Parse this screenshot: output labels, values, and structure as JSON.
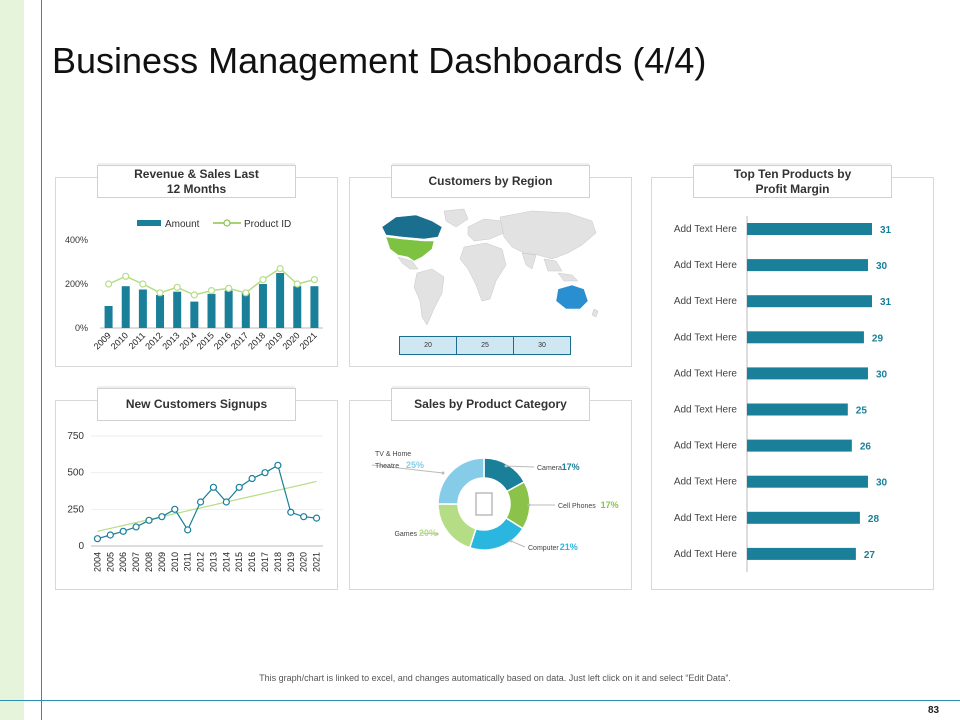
{
  "page": {
    "title": "Business Management Dashboards (4/4)",
    "page_number": "83",
    "footer_note": "This graph/chart is linked to excel, and changes automatically based on data. Just left click on it and select “Edit Data”."
  },
  "colors": {
    "teal": "#1a7f99",
    "green": "#8bc34a",
    "light_green": "#b5dd85",
    "cyan": "#2bb6e0",
    "sky": "#86cce8",
    "dark_blue": "#1a6f8f"
  },
  "panels": {
    "revenue": {
      "title": "Revenue & Sales Last 12 Months"
    },
    "region": {
      "title": "Customers by Region"
    },
    "top_products": {
      "title": "Top Ten Products by Profit Margin"
    },
    "signups": {
      "title": "New Customers Signups"
    },
    "category": {
      "title": "Sales by Product Category"
    }
  },
  "chart_data": [
    {
      "id": "revenue",
      "type": "bar",
      "title": "Revenue & Sales Last 12 Months",
      "categories": [
        "2009",
        "2010",
        "2011",
        "2012",
        "2013",
        "2014",
        "2015",
        "2016",
        "2017",
        "2018",
        "2019",
        "2020",
        "2021"
      ],
      "series": [
        {
          "name": "Amount",
          "type": "bar",
          "values": [
            100,
            190,
            175,
            150,
            165,
            120,
            155,
            170,
            160,
            200,
            250,
            190,
            190
          ]
        },
        {
          "name": "Product ID",
          "type": "line",
          "values": [
            200,
            235,
            200,
            160,
            185,
            150,
            170,
            180,
            160,
            220,
            270,
            200,
            220
          ]
        }
      ],
      "y_ticks": [
        "0%",
        "200%",
        "400%"
      ],
      "ylim": [
        0,
        400
      ]
    },
    {
      "id": "region",
      "type": "map",
      "title": "Customers by Region",
      "legend_values": [
        "20",
        "25",
        "30"
      ]
    },
    {
      "id": "top_products",
      "type": "bar",
      "orientation": "horizontal",
      "title": "Top Ten Products by Profit Margin",
      "categories": [
        "Add Text Here",
        "Add Text Here",
        "Add Text Here",
        "Add Text Here",
        "Add Text Here",
        "Add Text Here",
        "Add Text Here",
        "Add Text Here",
        "Add Text Here",
        "Add Text Here"
      ],
      "values": [
        31,
        30,
        31,
        29,
        30,
        25,
        26,
        30,
        28,
        27
      ],
      "xlim": [
        0,
        31
      ]
    },
    {
      "id": "signups",
      "type": "line",
      "title": "New Customers Signups",
      "x": [
        "2004",
        "2005",
        "2006",
        "2007",
        "2008",
        "2009",
        "2010",
        "2011",
        "2012",
        "2013",
        "2014",
        "2015",
        "2016",
        "2017",
        "2018",
        "2019",
        "2020",
        "2021"
      ],
      "values": [
        50,
        75,
        100,
        130,
        175,
        200,
        250,
        110,
        300,
        400,
        300,
        400,
        460,
        500,
        550,
        230,
        200,
        190
      ],
      "trendline": {
        "start": 100,
        "end": 440
      },
      "y_ticks": [
        "0",
        "250",
        "500",
        "750"
      ],
      "ylim": [
        0,
        750
      ]
    },
    {
      "id": "category",
      "type": "pie",
      "title": "Sales by Product Category",
      "slices": [
        {
          "label": "Camera",
          "value": 17,
          "pct": "17%"
        },
        {
          "label": "Cell Phones",
          "value": 17,
          "pct": "17%"
        },
        {
          "label": "Computer",
          "value": 21,
          "pct": "21%"
        },
        {
          "label": "Games",
          "value": 20,
          "pct": "20%"
        },
        {
          "label": "TV & Home Theatre",
          "label_lines": [
            "TV & Home",
            "Theatre"
          ],
          "value": 25,
          "pct": "25%"
        }
      ]
    }
  ]
}
